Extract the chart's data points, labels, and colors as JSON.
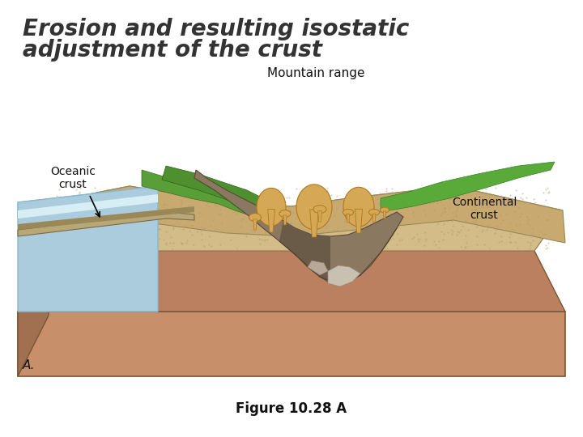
{
  "title_line1": "Erosion and resulting isostatic",
  "title_line2": "adjustment of the crust",
  "title_fontsize": 20,
  "title_color": "#333333",
  "title_style": "italic",
  "title_weight": "bold",
  "caption": "Figure 10.28 A",
  "caption_fontsize": 12,
  "caption_weight": "bold",
  "label_mountain": "Mountain range",
  "label_oceanic": "Oceanic\ncrust",
  "label_continental": "Continental\ncrust",
  "label_A": "A.",
  "bg_color": "#ffffff",
  "border_color": "#bbbbbb",
  "mantle_color": "#c8906a",
  "crust_sandy_color": "#d4bc88",
  "ocean_water_color": "#aaccdd",
  "ocean_water_color2": "#c5dde8",
  "oceanic_crust_color": "#b8a878",
  "oceanic_crust_dark": "#8a7a5a",
  "green_veg_color": "#6aaa44",
  "green_veg_dark": "#4a8830",
  "mountain_rock_color": "#8a7860",
  "mountain_rock_dark": "#5a4a38",
  "snow_color": "#d8d0c0",
  "magma_color": "#d4a855",
  "magma_edge": "#b07820",
  "mantle_side_color": "#b07850",
  "crust_edge_color": "#9a8858"
}
